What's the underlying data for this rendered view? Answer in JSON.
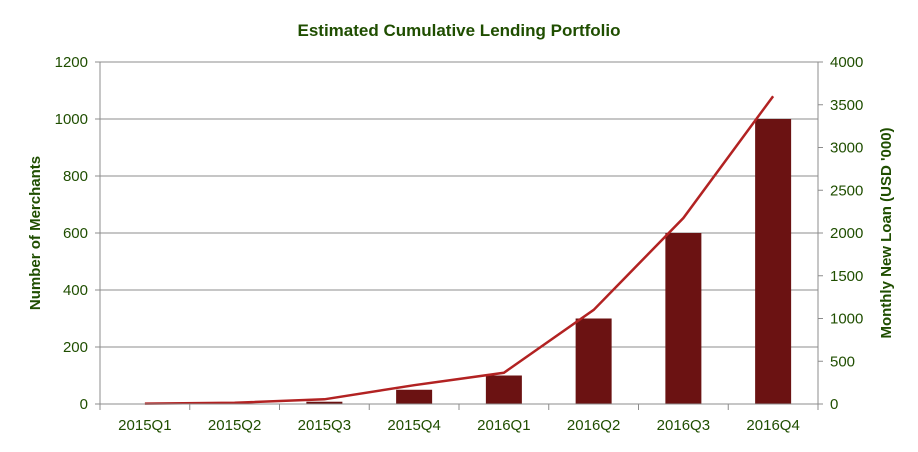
{
  "chart_data": {
    "type": "bar+line",
    "title": "Estimated Cumulative Lending Portfolio",
    "categories": [
      "2015Q1",
      "2015Q2",
      "2015Q3",
      "2015Q4",
      "2016Q1",
      "2016Q2",
      "2016Q3",
      "2016Q4"
    ],
    "series": [
      {
        "name": "Number of Merchants",
        "type": "bar",
        "axis": "left",
        "color": "#6b1212",
        "values": [
          1,
          2,
          8,
          50,
          100,
          300,
          600,
          1000
        ]
      },
      {
        "name": "Monthly New Loan (USD '000)",
        "type": "line",
        "axis": "right",
        "color": "#b22222",
        "values": [
          5,
          15,
          55,
          220,
          365,
          1100,
          2175,
          3600
        ]
      }
    ],
    "ylabel": "Number of Merchants",
    "y2label": "Monthly New Loan  (USD '000)",
    "ylim": [
      0,
      1200
    ],
    "y2lim": [
      0,
      4000
    ],
    "yticks": [
      "0",
      "200",
      "400",
      "600",
      "800",
      "1000",
      "1200"
    ],
    "y2ticks": [
      "0",
      "500",
      "1000",
      "1500",
      "2000",
      "2500",
      "3000",
      "3500",
      "4000"
    ],
    "grid": true,
    "legend": "none"
  }
}
